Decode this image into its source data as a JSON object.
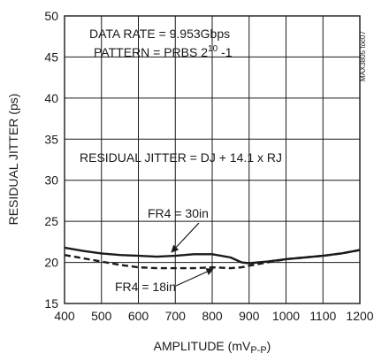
{
  "figure_id": "MAX3805 toc07",
  "chart_data": {
    "type": "line",
    "xlabel": "AMPLITUDE (mV",
    "xlabel_sub": "P-P",
    "xlabel_close": ")",
    "ylabel": "RESIDUAL JITTER (ps)",
    "xlim": [
      400,
      1200
    ],
    "ylim": [
      15,
      50
    ],
    "x_ticks": [
      400,
      500,
      600,
      700,
      800,
      900,
      1000,
      1100,
      1200
    ],
    "y_ticks": [
      15,
      20,
      25,
      30,
      35,
      40,
      45,
      50
    ],
    "grid": true,
    "annotations": {
      "data_rate": "DATA RATE = 9.953Gbps",
      "pattern_prefix": "PATTERN = PRBS 2",
      "pattern_exp": "10",
      "pattern_suffix": " -1",
      "formula": "RESIDUAL JITTER = DJ + 14.1 x RJ"
    },
    "series": [
      {
        "name": "FR4 = 30in",
        "style": "solid",
        "x": [
          400,
          450,
          500,
          550,
          600,
          650,
          700,
          750,
          800,
          850,
          880,
          900,
          950,
          1000,
          1050,
          1100,
          1150,
          1200
        ],
        "y": [
          21.8,
          21.4,
          21.1,
          20.9,
          20.8,
          20.7,
          20.8,
          21.0,
          21.0,
          20.6,
          20.0,
          19.9,
          20.1,
          20.4,
          20.6,
          20.8,
          21.1,
          21.5
        ]
      },
      {
        "name": "FR4 = 18in",
        "style": "dashed",
        "x": [
          400,
          450,
          500,
          550,
          600,
          650,
          700,
          750,
          800,
          850,
          880,
          900,
          950,
          1000,
          1050,
          1100,
          1150,
          1200
        ],
        "y": [
          20.9,
          20.5,
          20.1,
          19.7,
          19.4,
          19.3,
          19.3,
          19.3,
          19.4,
          19.3,
          19.4,
          19.6,
          20.0,
          20.4,
          20.6,
          20.8,
          21.1,
          21.5
        ]
      }
    ]
  }
}
